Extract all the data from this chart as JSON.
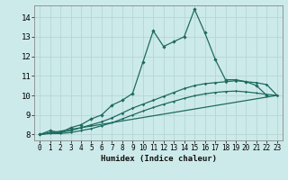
{
  "title": "",
  "xlabel": "Humidex (Indice chaleur)",
  "background_color": "#cdeaea",
  "grid_color": "#b8d8d8",
  "line_color": "#1e6b5e",
  "xlim": [
    -0.5,
    23.5
  ],
  "ylim": [
    7.7,
    14.6
  ],
  "xticks": [
    0,
    1,
    2,
    3,
    4,
    5,
    6,
    7,
    8,
    9,
    10,
    11,
    12,
    13,
    14,
    15,
    16,
    17,
    18,
    19,
    20,
    21,
    22,
    23
  ],
  "yticks": [
    8,
    9,
    10,
    11,
    12,
    13,
    14
  ],
  "series1_x": [
    0,
    1,
    2,
    3,
    4,
    5,
    6,
    7,
    8,
    9,
    10,
    11,
    12,
    13,
    14,
    15,
    16,
    17,
    18,
    19,
    20,
    21,
    22
  ],
  "series1_y": [
    8.0,
    8.2,
    8.1,
    8.35,
    8.5,
    8.8,
    9.0,
    9.5,
    9.75,
    10.1,
    11.7,
    13.3,
    12.5,
    12.75,
    13.0,
    14.4,
    13.2,
    11.85,
    10.8,
    10.8,
    10.7,
    10.5,
    10.0
  ],
  "series2_x": [
    0,
    1,
    2,
    3,
    4,
    5,
    6,
    7,
    8,
    9,
    10,
    11,
    12,
    13,
    14,
    15,
    16,
    17,
    18,
    19,
    20,
    21,
    22,
    23
  ],
  "series2_y": [
    8.0,
    8.1,
    8.1,
    8.2,
    8.35,
    8.5,
    8.65,
    8.85,
    9.1,
    9.35,
    9.55,
    9.75,
    9.95,
    10.15,
    10.35,
    10.5,
    10.6,
    10.65,
    10.7,
    10.75,
    10.7,
    10.65,
    10.55,
    10.0
  ],
  "series3_x": [
    0,
    1,
    2,
    3,
    4,
    5,
    6,
    7,
    8,
    9,
    10,
    11,
    12,
    13,
    14,
    15,
    16,
    17,
    18,
    19,
    20,
    21,
    22,
    23
  ],
  "series3_y": [
    8.0,
    8.05,
    8.05,
    8.1,
    8.2,
    8.3,
    8.45,
    8.6,
    8.8,
    9.0,
    9.2,
    9.38,
    9.55,
    9.7,
    9.85,
    9.98,
    10.08,
    10.15,
    10.2,
    10.22,
    10.18,
    10.12,
    10.05,
    10.0
  ],
  "series4_x": [
    0,
    23
  ],
  "series4_y": [
    8.0,
    10.0
  ]
}
